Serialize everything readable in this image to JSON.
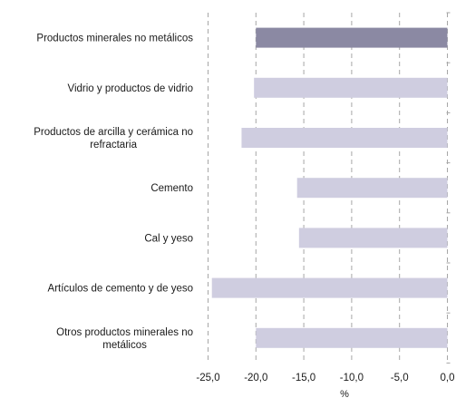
{
  "chart_data": {
    "type": "bar",
    "orientation": "horizontal",
    "categories": [
      "Productos minerales no metálicos",
      "Vidrio y productos de vidrio",
      "Productos de arcilla y cerámica no refractaria",
      "Cemento",
      "Cal y yeso",
      "Artículos de cemento y de yeso",
      "Otros productos minerales no metálicos"
    ],
    "category_label_lines": [
      [
        "Productos minerales no metálicos"
      ],
      [
        "Vidrio y productos de vidrio"
      ],
      [
        "Productos de arcilla y cerámica no",
        "refractaria"
      ],
      [
        "Cemento"
      ],
      [
        "Cal y yeso"
      ],
      [
        "Artículos de cemento y de yeso"
      ],
      [
        "Otros productos minerales no",
        "metálicos"
      ]
    ],
    "values": [
      -20.0,
      -20.2,
      -21.5,
      -15.7,
      -15.5,
      -24.6,
      -20.0
    ],
    "highlight_index": 0,
    "xlim": [
      -25.0,
      0.0
    ],
    "xticks": [
      "-25,0",
      "-20,0",
      "-15,0",
      "-10,0",
      "-5,0",
      "0,0"
    ],
    "xtick_values": [
      -25,
      -20,
      -15,
      -10,
      -5,
      0
    ],
    "xlabel": "%",
    "grid": "vertical dashed",
    "colors": {
      "highlight": "#8b89a3",
      "bar": "#cfcde0",
      "grid": "#a6a6a6",
      "text": "#1a1a1a"
    }
  }
}
